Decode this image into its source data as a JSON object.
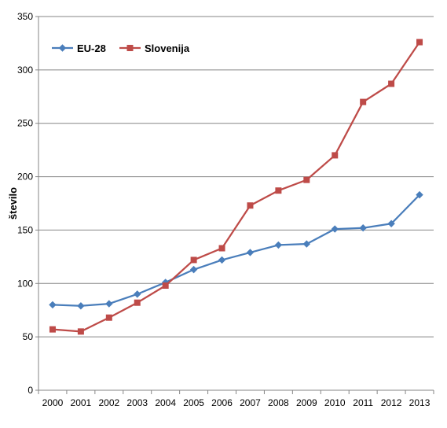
{
  "chart_data": {
    "type": "line",
    "title": "",
    "xlabel": "",
    "ylabel": "število",
    "x": [
      "2000",
      "2001",
      "2002",
      "2003",
      "2004",
      "2005",
      "2006",
      "2007",
      "2008",
      "2009",
      "2010",
      "2011",
      "2012",
      "2013"
    ],
    "ylim": [
      0,
      350
    ],
    "yticks": [
      "0",
      "50",
      "100",
      "150",
      "200",
      "250",
      "300",
      "350"
    ],
    "grid": "horizontal",
    "legend_position": "top-left",
    "series": [
      {
        "name": "EU-28",
        "color": "#4a7ebb",
        "marker": "diamond",
        "values": [
          80,
          79,
          81,
          90,
          101,
          113,
          122,
          129,
          136,
          137,
          151,
          152,
          156,
          183
        ]
      },
      {
        "name": "Slovenija",
        "color": "#be4b48",
        "marker": "square",
        "values": [
          57,
          55,
          68,
          82,
          98,
          122,
          133,
          173,
          187,
          197,
          220,
          270,
          287,
          326
        ]
      }
    ]
  }
}
